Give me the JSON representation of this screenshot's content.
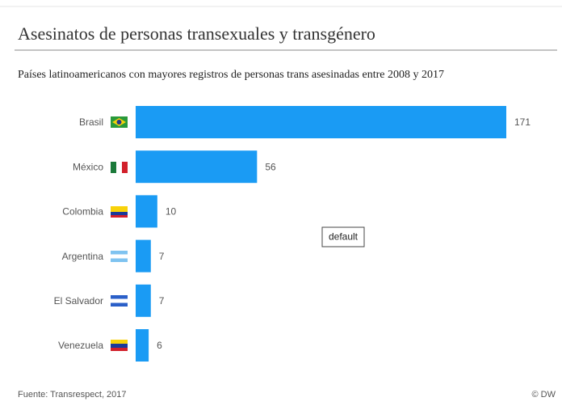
{
  "chart_data": {
    "type": "bar",
    "title": "Asesinatos de personas transexuales y transgénero",
    "subtitle": "Países latinoamericanos con mayores registros de personas trans asesinadas entre 2008 y 2017",
    "categories": [
      "Brasil",
      "México",
      "Colombia",
      "Argentina",
      "El Salvador",
      "Venezuela"
    ],
    "values": [
      171,
      56,
      10,
      7,
      7,
      6
    ],
    "color": "#1a9bf4",
    "source": "Fuente: Transrespect, 2017",
    "credit": "© DW",
    "tooltip": "default"
  }
}
